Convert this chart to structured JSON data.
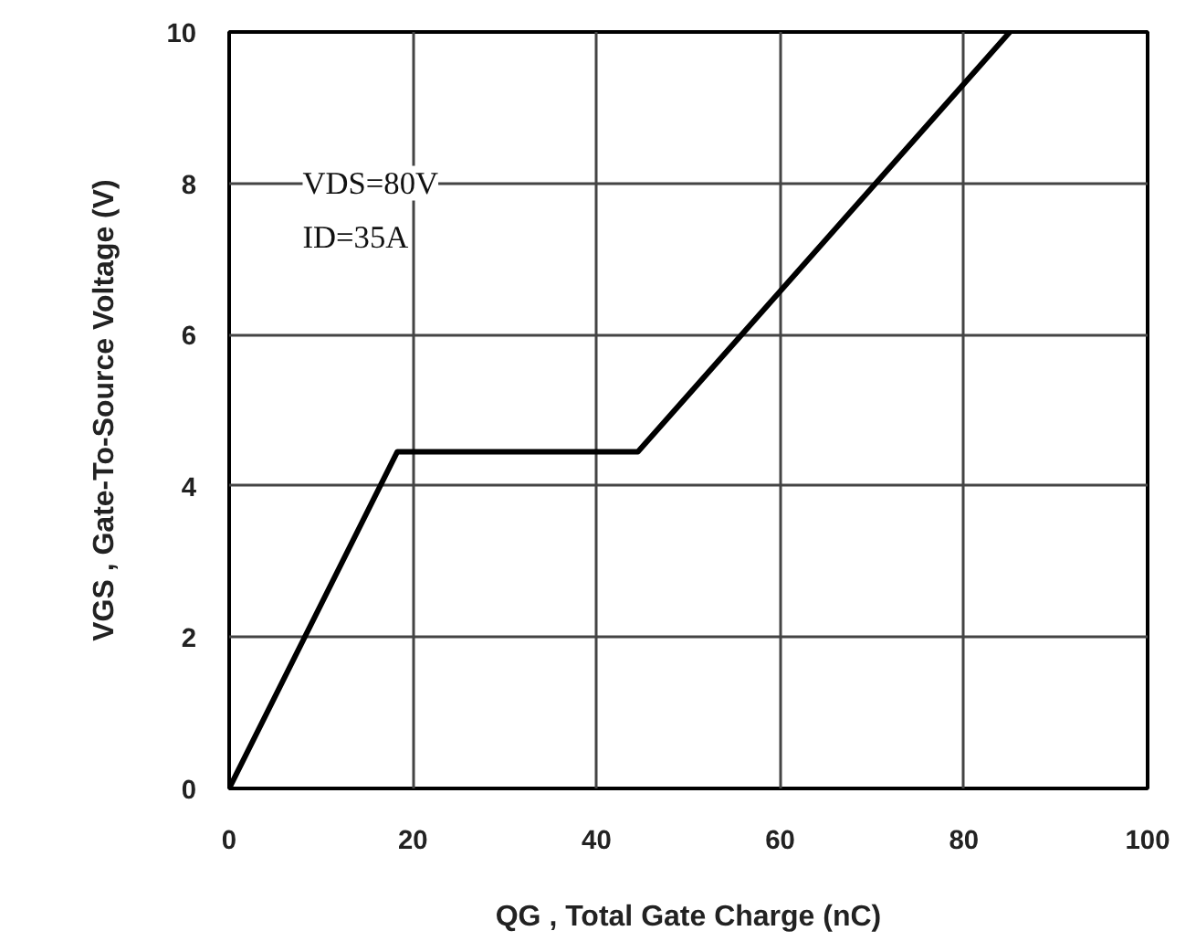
{
  "chart_data": {
    "type": "line",
    "xlabel": "QG , Total Gate Charge (nC)",
    "ylabel": "VGS , Gate-To-Source Voltage (V)",
    "x": [
      0,
      18.3,
      44.5,
      85
    ],
    "series": [
      {
        "color": "#000000",
        "values": [
          0,
          4.45,
          4.45,
          10
        ]
      }
    ],
    "xlim": [
      0,
      100
    ],
    "ylim": [
      0,
      10
    ],
    "xticks": [
      0,
      20,
      40,
      60,
      80,
      100
    ],
    "yticks": [
      0,
      2,
      4,
      6,
      8,
      10
    ],
    "grid": true,
    "marker": "none",
    "line_style": "solid",
    "annotations": [
      "VDS=80V",
      "ID=35A"
    ]
  }
}
